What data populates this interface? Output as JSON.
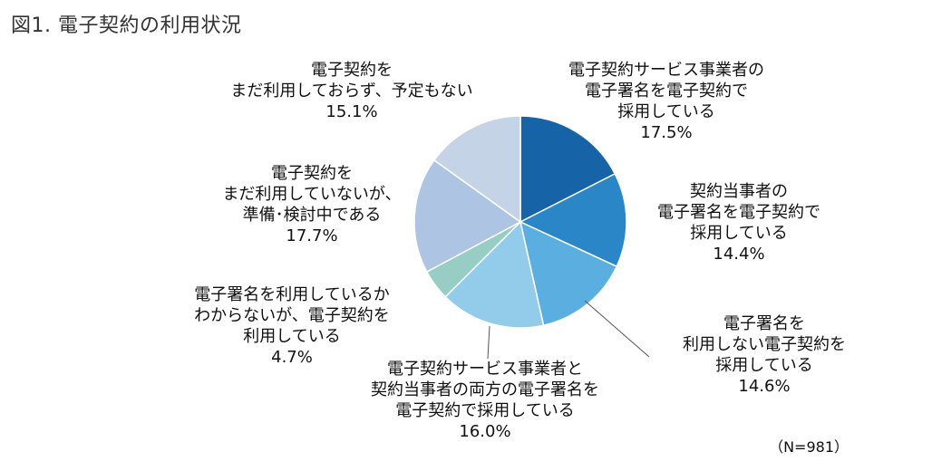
{
  "title": "図1.  電子契約の利用状況",
  "note": "（N=981）",
  "chart_data": {
    "type": "pie",
    "title": "図1.  電子契約の利用状況",
    "n_label": "（N=981）",
    "start_angle_deg": 0,
    "direction": "clockwise",
    "slices": [
      {
        "name": "電子契約サービス事業者の電子署名を電子契約で採用している",
        "lines": [
          "電子契約サービス事業者の",
          "電子署名を電子契約で",
          "採用している"
        ],
        "value": 17.5,
        "label": "17.5%",
        "color": "#1763a8"
      },
      {
        "name": "契約当事者の電子署名を電子契約で採用している",
        "lines": [
          "契約当事者の",
          "電子署名を電子契約で",
          "採用している"
        ],
        "value": 14.4,
        "label": "14.4%",
        "color": "#2a86c6"
      },
      {
        "name": "電子署名を利用しない電子契約を採用している",
        "lines": [
          "電子署名を",
          "利用しない電子契約を",
          "採用している"
        ],
        "value": 14.6,
        "label": "14.6%",
        "color": "#5aaee0"
      },
      {
        "name": "電子契約サービス事業者と契約当事者の両方の電子署名を電子契約で採用している",
        "lines": [
          "電子契約サービス事業者と",
          "契約当事者の両方の電子署名を",
          "電子契約で採用している"
        ],
        "value": 16.0,
        "label": "16.0%",
        "color": "#93cbea"
      },
      {
        "name": "電子署名を利用しているかわからないが、電子契約を利用している",
        "lines": [
          "電子署名を利用しているか",
          "わからないが、電子契約を",
          "利用している"
        ],
        "value": 4.7,
        "label": "4.7%",
        "color": "#98cdc6"
      },
      {
        "name": "電子契約をまだ利用していないが、準備・検討中である",
        "lines": [
          "電子契約を",
          "まだ利用していないが、",
          "準備･検討中である"
        ],
        "value": 17.7,
        "label": "17.7%",
        "color": "#adc5e3"
      },
      {
        "name": "電子契約をまだ利用しておらず、予定もない",
        "lines": [
          "電子契約を",
          "まだ利用しておらず、予定もない"
        ],
        "value": 15.1,
        "label": "15.1%",
        "color": "#c4d3e6"
      }
    ]
  }
}
